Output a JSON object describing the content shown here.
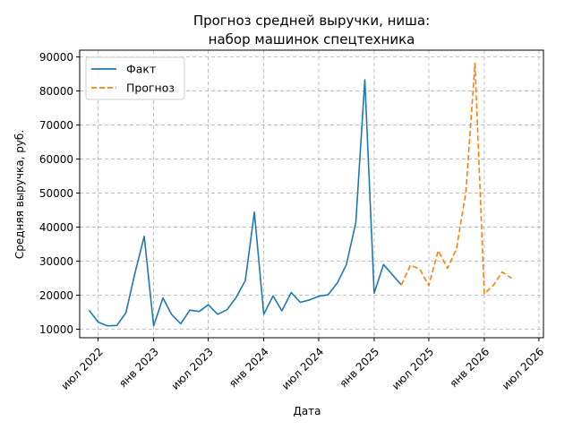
{
  "chart_data": {
    "type": "line",
    "title_lines": [
      "Прогноз средней выручки, ниша:",
      "набор машинок спецтехника"
    ],
    "xlabel": "Дата",
    "ylabel": "Средняя выручка, руб.",
    "ylim": [
      7500,
      92000
    ],
    "xlim": [
      "2022-05-01",
      "2026-07-16"
    ],
    "yticks": [
      10000,
      20000,
      30000,
      40000,
      50000,
      60000,
      70000,
      80000,
      90000
    ],
    "xticks": [
      {
        "date": "2022-07-01",
        "label": "июл 2022"
      },
      {
        "date": "2023-01-01",
        "label": "янв 2023"
      },
      {
        "date": "2023-07-01",
        "label": "июл 2023"
      },
      {
        "date": "2024-01-01",
        "label": "янв 2024"
      },
      {
        "date": "2024-07-01",
        "label": "июл 2024"
      },
      {
        "date": "2025-01-01",
        "label": "янв 2025"
      },
      {
        "date": "2025-07-01",
        "label": "июл 2025"
      },
      {
        "date": "2026-01-01",
        "label": "янв 2026"
      },
      {
        "date": "2026-07-01",
        "label": "июл 2026"
      }
    ],
    "grid": true,
    "legend_position": "top-left",
    "series": [
      {
        "name": "Факт",
        "color": "#1f77b4",
        "style": "solid",
        "points": [
          [
            "2022-06-01",
            15600
          ],
          [
            "2022-07-01",
            12100
          ],
          [
            "2022-08-01",
            11000
          ],
          [
            "2022-09-01",
            11100
          ],
          [
            "2022-10-01",
            14800
          ],
          [
            "2022-11-01",
            26800
          ],
          [
            "2022-12-01",
            37300
          ],
          [
            "2023-01-01",
            11000
          ],
          [
            "2023-02-01",
            19200
          ],
          [
            "2023-03-01",
            14400
          ],
          [
            "2023-04-01",
            11600
          ],
          [
            "2023-05-01",
            15600
          ],
          [
            "2023-06-01",
            15200
          ],
          [
            "2023-07-01",
            17200
          ],
          [
            "2023-08-01",
            14400
          ],
          [
            "2023-09-01",
            15700
          ],
          [
            "2023-10-01",
            19300
          ],
          [
            "2023-11-01",
            24300
          ],
          [
            "2023-12-01",
            44400
          ],
          [
            "2024-01-01",
            14400
          ],
          [
            "2024-02-01",
            19800
          ],
          [
            "2024-03-01",
            15400
          ],
          [
            "2024-04-01",
            20800
          ],
          [
            "2024-05-01",
            17900
          ],
          [
            "2024-06-01",
            18600
          ],
          [
            "2024-07-01",
            19700
          ],
          [
            "2024-08-01",
            20100
          ],
          [
            "2024-09-01",
            23600
          ],
          [
            "2024-10-01",
            29000
          ],
          [
            "2024-11-01",
            41300
          ],
          [
            "2024-12-01",
            83300
          ],
          [
            "2025-01-01",
            20600
          ],
          [
            "2025-02-01",
            29000
          ],
          [
            "2025-04-01",
            23000
          ]
        ]
      },
      {
        "name": "Прогноз",
        "color": "#ff7f0e",
        "style": "dashed",
        "points": [
          [
            "2025-04-01",
            23000
          ],
          [
            "2025-05-01",
            28800
          ],
          [
            "2025-06-01",
            27700
          ],
          [
            "2025-07-01",
            22800
          ],
          [
            "2025-08-01",
            33100
          ],
          [
            "2025-09-01",
            27900
          ],
          [
            "2025-10-01",
            33700
          ],
          [
            "2025-11-01",
            50400
          ],
          [
            "2025-12-01",
            88100
          ],
          [
            "2026-01-01",
            20400
          ],
          [
            "2026-02-01",
            23000
          ],
          [
            "2026-03-01",
            26800
          ],
          [
            "2026-04-01",
            25000
          ]
        ]
      }
    ]
  }
}
